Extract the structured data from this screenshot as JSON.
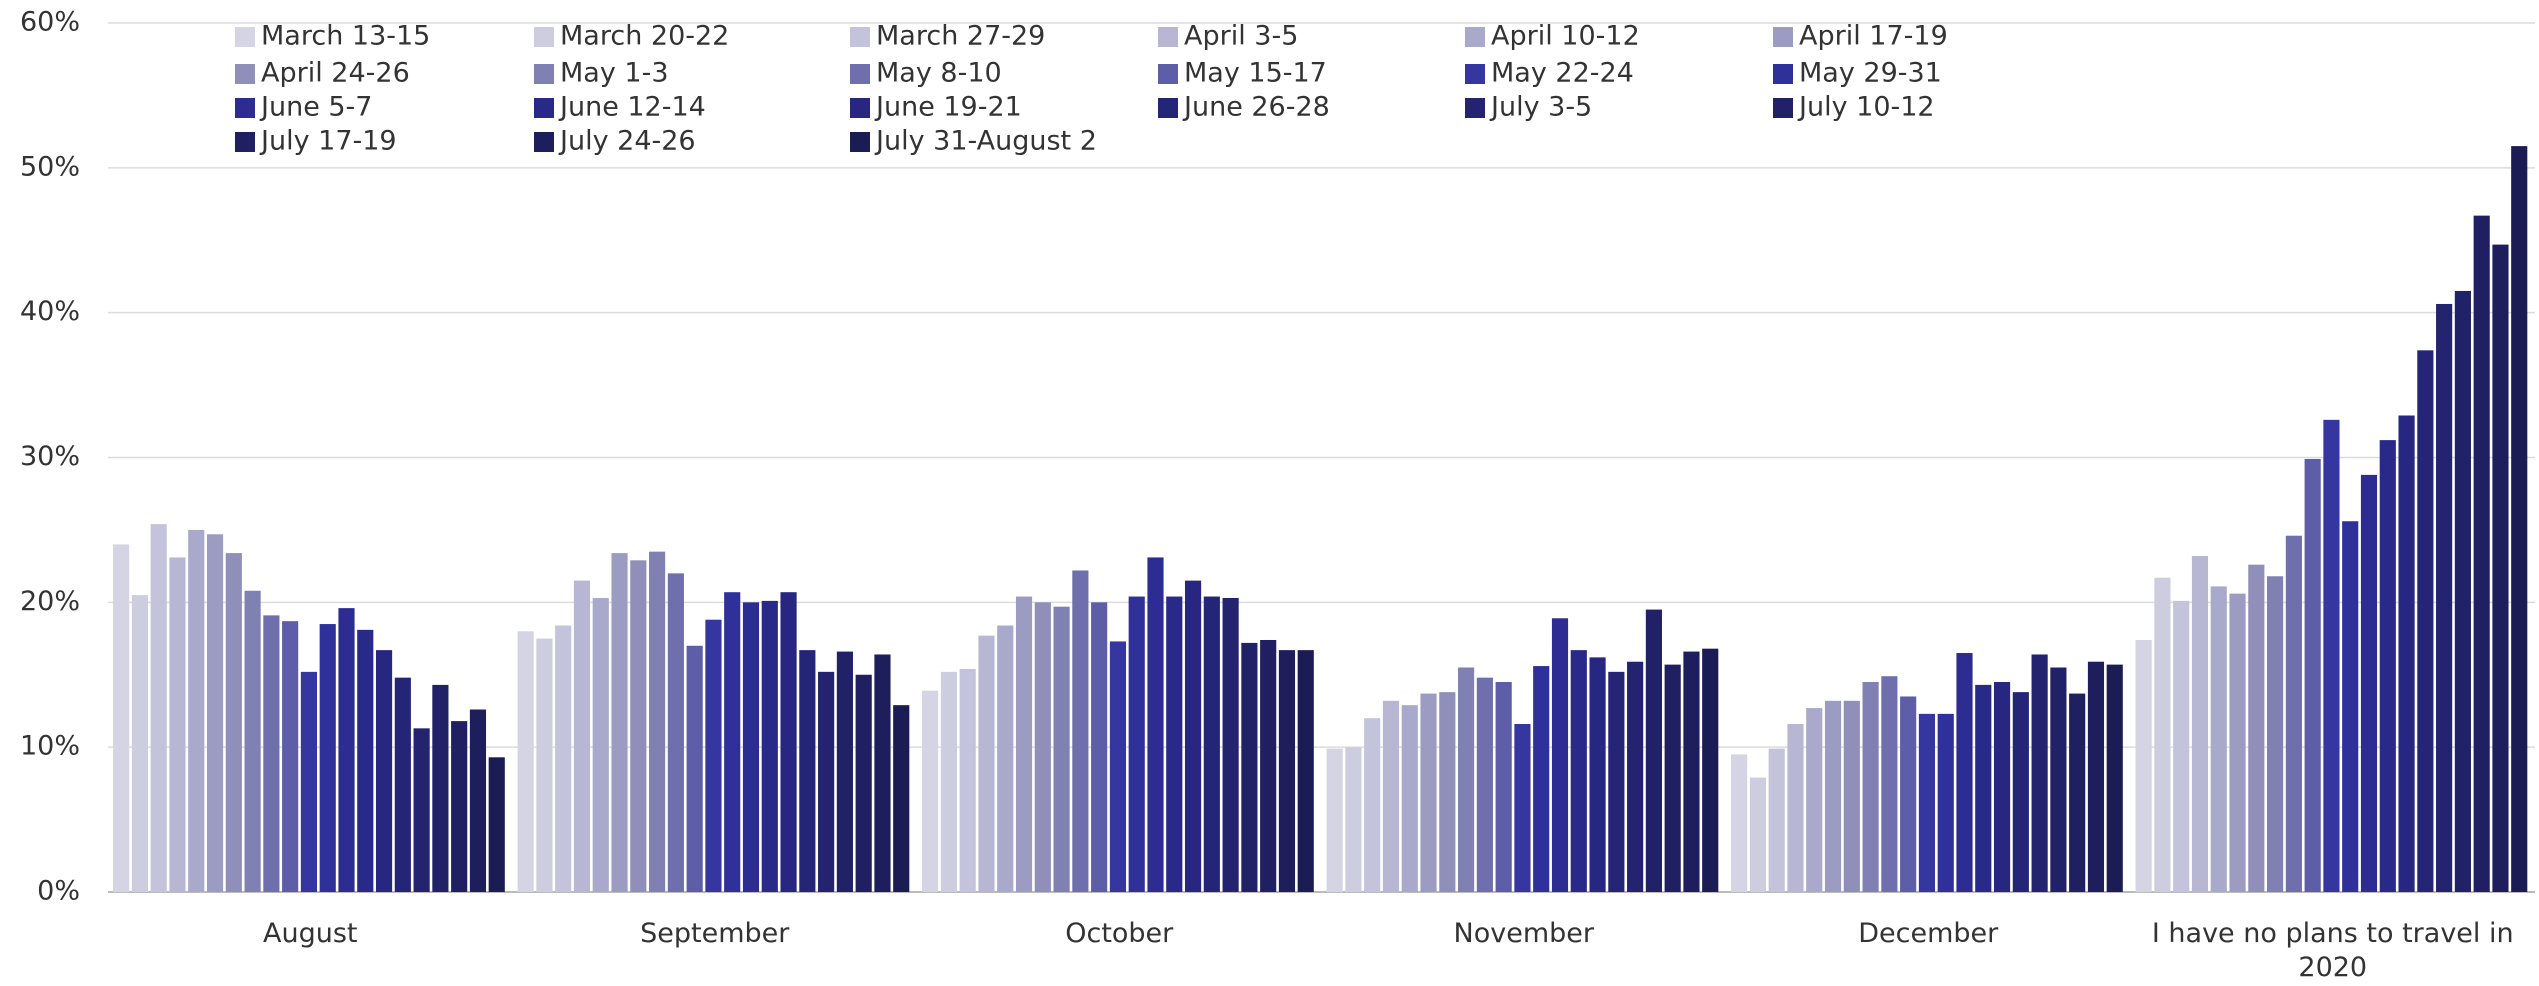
{
  "chart_data": {
    "type": "bar",
    "categories": [
      "August",
      "September",
      "October",
      "November",
      "December",
      "I have no plans to travel in 2020"
    ],
    "series": [
      {
        "name": "March 13-15",
        "color": "#d4d4e4",
        "values": [
          24.0,
          18.0,
          13.9,
          9.9,
          9.5,
          17.4
        ]
      },
      {
        "name": "March 20-22",
        "color": "#cdcde0",
        "values": [
          20.5,
          17.5,
          15.2,
          10.0,
          7.9,
          21.7
        ]
      },
      {
        "name": "March 27-29",
        "color": "#c3c3db",
        "values": [
          25.4,
          18.4,
          15.4,
          12.0,
          9.9,
          20.1
        ]
      },
      {
        "name": "April 3-5",
        "color": "#b7b7d3",
        "values": [
          23.1,
          21.5,
          17.7,
          13.2,
          11.6,
          23.2
        ]
      },
      {
        "name": "April 10-12",
        "color": "#a9a9cb",
        "values": [
          25.0,
          20.3,
          18.4,
          12.9,
          12.7,
          21.1
        ]
      },
      {
        "name": "April 17-19",
        "color": "#9c9cc2",
        "values": [
          24.7,
          23.4,
          20.4,
          13.7,
          13.2,
          20.6
        ]
      },
      {
        "name": "April 24-26",
        "color": "#8f8fba",
        "values": [
          23.4,
          22.9,
          20.0,
          13.8,
          13.2,
          22.6
        ]
      },
      {
        "name": "May 1-3",
        "color": "#8080b3",
        "values": [
          20.8,
          23.5,
          19.7,
          15.5,
          14.5,
          21.8
        ]
      },
      {
        "name": "May 8-10",
        "color": "#6f6fad",
        "values": [
          19.1,
          22.0,
          22.2,
          14.8,
          14.9,
          24.6
        ]
      },
      {
        "name": "May 15-17",
        "color": "#5d5da8",
        "values": [
          18.7,
          17.0,
          20.0,
          14.5,
          13.5,
          29.9
        ]
      },
      {
        "name": "May 22-24",
        "color": "#3636a0",
        "values": [
          15.2,
          18.8,
          17.3,
          11.6,
          12.3,
          32.6
        ]
      },
      {
        "name": "May 29-31",
        "color": "#30309a",
        "values": [
          18.5,
          20.7,
          20.4,
          15.6,
          12.3,
          25.6
        ]
      },
      {
        "name": "June 5-7",
        "color": "#2c2c92",
        "values": [
          19.6,
          20.0,
          23.1,
          18.9,
          16.5,
          28.8
        ]
      },
      {
        "name": "June 12-14",
        "color": "#29298a",
        "values": [
          18.1,
          20.1,
          20.4,
          16.7,
          14.3,
          31.2
        ]
      },
      {
        "name": "June 19-21",
        "color": "#272781",
        "values": [
          16.7,
          20.7,
          21.5,
          16.2,
          14.5,
          32.9
        ]
      },
      {
        "name": "June 26-28",
        "color": "#252578",
        "values": [
          14.8,
          16.7,
          20.4,
          15.2,
          13.8,
          37.4
        ]
      },
      {
        "name": "July 3-5",
        "color": "#232370",
        "values": [
          11.3,
          15.2,
          20.3,
          15.9,
          16.4,
          40.6
        ]
      },
      {
        "name": "July 10-12",
        "color": "#212168",
        "values": [
          14.3,
          16.6,
          17.2,
          19.5,
          15.5,
          41.5
        ]
      },
      {
        "name": "July 17-19",
        "color": "#1f1f62",
        "values": [
          11.8,
          15.0,
          17.4,
          15.7,
          13.7,
          46.7
        ]
      },
      {
        "name": "July 24-26",
        "color": "#1e1e5c",
        "values": [
          12.6,
          16.4,
          16.7,
          16.6,
          15.9,
          44.7
        ]
      },
      {
        "name": "July 31-August 2",
        "color": "#1c1c55",
        "values": [
          9.3,
          12.9,
          16.7,
          16.8,
          15.7,
          51.5
        ]
      }
    ],
    "ylim": [
      0,
      60
    ],
    "yticks": [
      {
        "value": 0,
        "label": "0%"
      },
      {
        "value": 10,
        "label": "10%"
      },
      {
        "value": 20,
        "label": "20%"
      },
      {
        "value": 30,
        "label": "30%"
      },
      {
        "value": 40,
        "label": "40%"
      },
      {
        "value": 50,
        "label": "50%"
      },
      {
        "value": 60,
        "label": "60%"
      }
    ],
    "grid": true
  }
}
